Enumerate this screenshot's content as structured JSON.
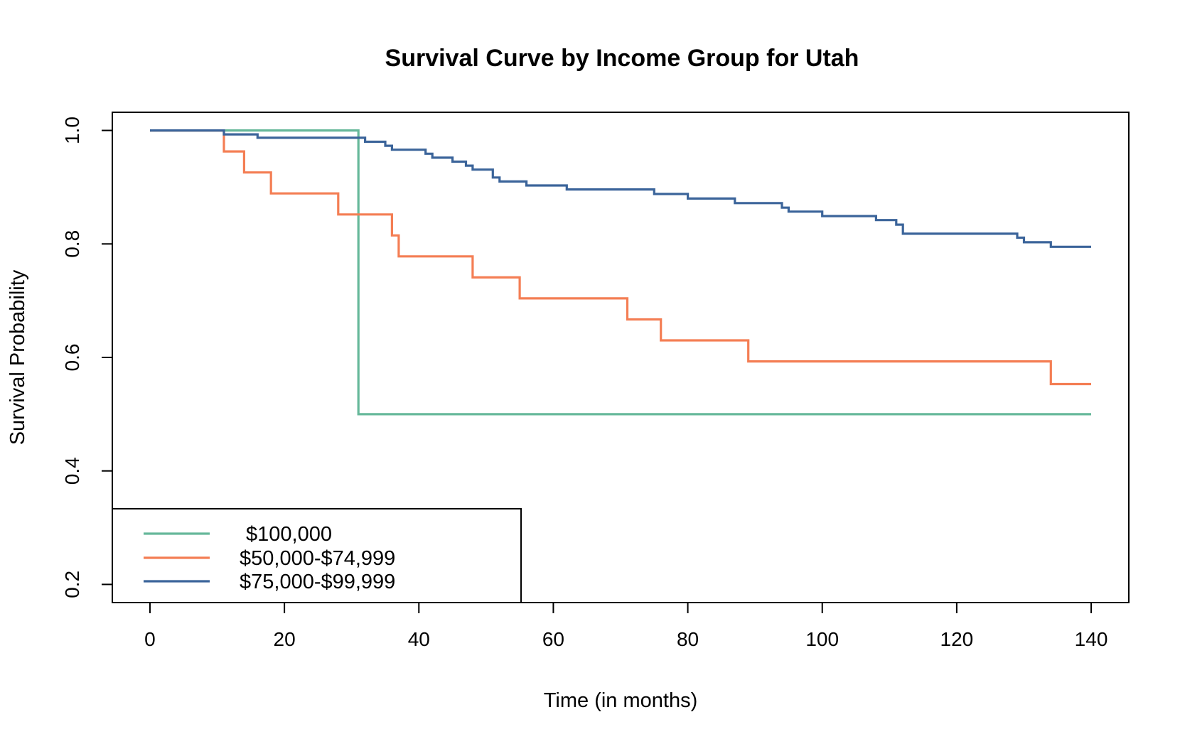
{
  "chart_data": {
    "type": "line",
    "step": true,
    "title": "Survival Curve by Income Group for Utah",
    "xlabel": "Time (in months)",
    "ylabel": "Survival Probability",
    "xlim": [
      -5.6,
      145.6
    ],
    "ylim": [
      0.168,
      1.032
    ],
    "xticks": [
      0,
      20,
      40,
      60,
      80,
      100,
      120,
      140
    ],
    "yticks": [
      0.2,
      0.4,
      0.6,
      0.8,
      1.0
    ],
    "ytick_labels": [
      "0.2",
      "0.4",
      "0.6",
      "0.8",
      "1.0"
    ],
    "grid": false,
    "legend_position": "bottom-left",
    "series": [
      {
        "name": "$100,000",
        "color": "#66b89a",
        "x": [
          0,
          31,
          140
        ],
        "y": [
          1.0,
          0.5,
          0.5
        ]
      },
      {
        "name": "$50,000-$74,999",
        "color": "#f47e54",
        "x": [
          0,
          11,
          14,
          18,
          28,
          36,
          37,
          48,
          55,
          71,
          76,
          89,
          134,
          140
        ],
        "y": [
          1.0,
          0.963,
          0.926,
          0.889,
          0.852,
          0.815,
          0.778,
          0.741,
          0.704,
          0.667,
          0.63,
          0.593,
          0.553,
          0.553
        ]
      },
      {
        "name": "$75,000-$99,999",
        "color": "#3b649a",
        "x": [
          0,
          11,
          16,
          32,
          35,
          36,
          41,
          42,
          45,
          47,
          48,
          51,
          52,
          56,
          62,
          75,
          80,
          87,
          94,
          95,
          100,
          108,
          111,
          112,
          129,
          130,
          134,
          140
        ],
        "y": [
          1.0,
          0.993,
          0.987,
          0.98,
          0.973,
          0.966,
          0.959,
          0.952,
          0.945,
          0.938,
          0.931,
          0.917,
          0.91,
          0.903,
          0.896,
          0.888,
          0.88,
          0.872,
          0.864,
          0.857,
          0.849,
          0.842,
          0.834,
          0.818,
          0.811,
          0.803,
          0.795,
          0.795
        ]
      }
    ]
  }
}
